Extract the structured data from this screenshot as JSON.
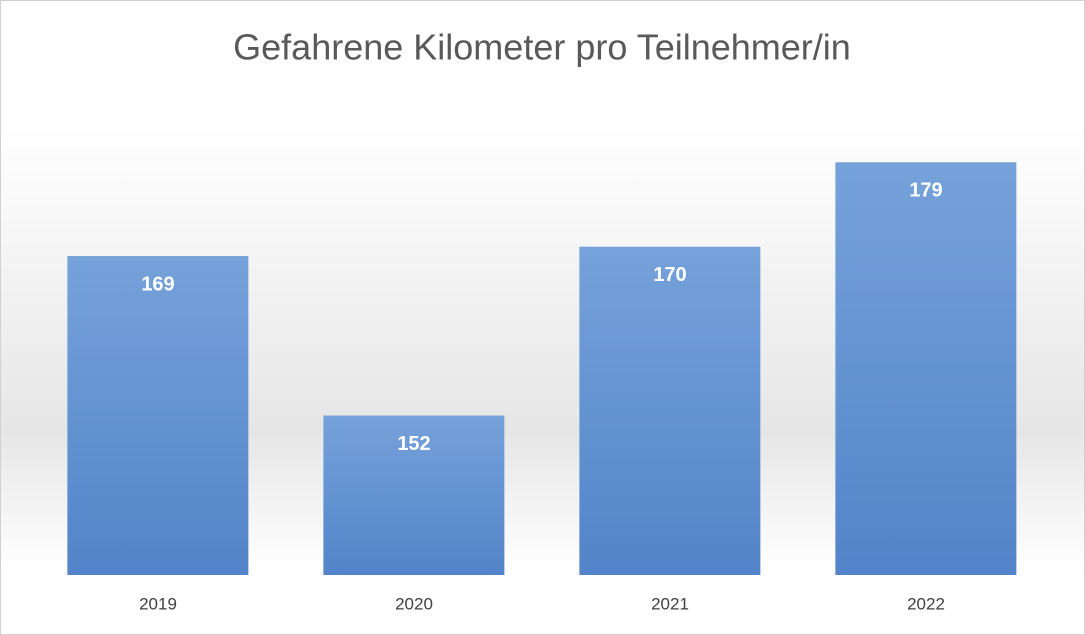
{
  "chart_data": {
    "type": "bar",
    "title": "Gefahrene Kilometer pro Teilnehmer/in",
    "categories": [
      "2019",
      "2020",
      "2021",
      "2022"
    ],
    "values": [
      169,
      152,
      170,
      179
    ],
    "color": "#6a98d4",
    "ylim": [
      135,
      185
    ],
    "data_labels": true
  }
}
